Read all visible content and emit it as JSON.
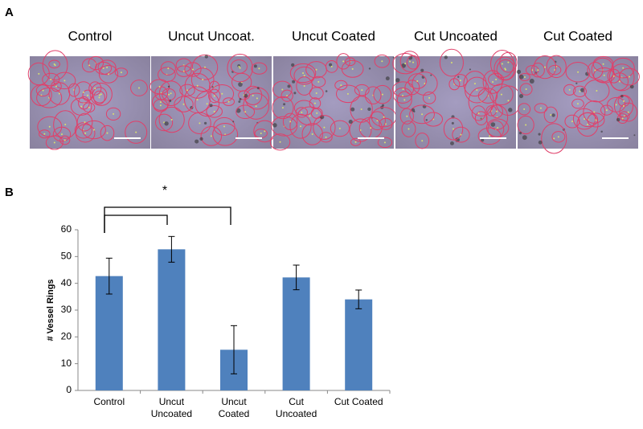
{
  "figure": {
    "panel_labels": [
      "A",
      "B"
    ],
    "image_titles": [
      "Control",
      "Uncut Uncoat.",
      "Uncut Coated",
      "Cut Uncoated",
      "Cut Coated"
    ]
  },
  "chart_data": {
    "type": "bar",
    "y_label": "# Vessel Rings",
    "categories": [
      "Control",
      "Uncut\nUncoated",
      "Uncut\nCoated",
      "Cut\nUncoated",
      "Cut Coated"
    ],
    "values": [
      42.7,
      52.7,
      15.2,
      42.2,
      34
    ],
    "errors": [
      6.7,
      4.8,
      9,
      4.6,
      3.5
    ],
    "color": "#4f81bd",
    "ylim": [
      0,
      60
    ],
    "yticks": [
      0,
      10,
      20,
      30,
      40,
      50,
      60
    ],
    "grid": false,
    "significance_label": "*"
  }
}
